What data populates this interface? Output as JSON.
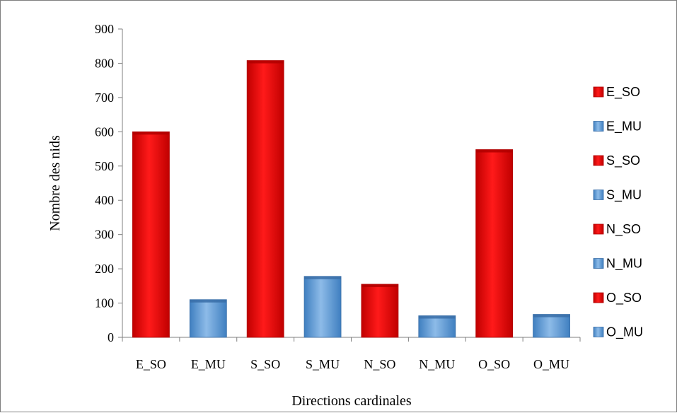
{
  "chart_data": {
    "type": "bar",
    "categories": [
      "E_SO",
      "E_MU",
      "S_SO",
      "S_MU",
      "N_SO",
      "N_MU",
      "O_SO",
      "O_MU"
    ],
    "values": [
      600,
      110,
      808,
      178,
      155,
      63,
      548,
      67
    ],
    "colors": [
      "#ff0000",
      "#5b9bd5",
      "#ff0000",
      "#5b9bd5",
      "#ff0000",
      "#5b9bd5",
      "#ff0000",
      "#5b9bd5"
    ],
    "xlabel": "Directions cardinales",
    "ylabel": "Nombre des nids",
    "ylim": [
      0,
      900
    ],
    "yticks": [
      0,
      100,
      200,
      300,
      400,
      500,
      600,
      700,
      800,
      900
    ],
    "grid": false,
    "legend_position": "right",
    "legend": [
      {
        "label": "E_SO",
        "color": "#ff0000"
      },
      {
        "label": "E_MU",
        "color": "#5b9bd5"
      },
      {
        "label": "S_SO",
        "color": "#ff0000"
      },
      {
        "label": "S_MU",
        "color": "#5b9bd5"
      },
      {
        "label": "N_SO",
        "color": "#ff0000"
      },
      {
        "label": "N_MU",
        "color": "#5b9bd5"
      },
      {
        "label": "O_SO",
        "color": "#ff0000"
      },
      {
        "label": "O_MU",
        "color": "#5b9bd5"
      }
    ]
  }
}
